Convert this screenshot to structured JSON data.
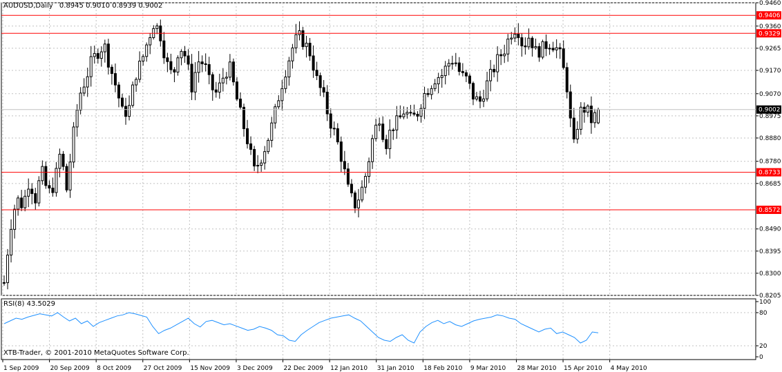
{
  "window": {
    "symbol_title": "AUDUSD,Daily",
    "ohlc_readout": "0.8945 0.9010 0.8939 0.9002",
    "indicator_label": "RSI(8) 43.5029",
    "copyright": "XTB-Trader, © 2001-2010 MetaQuotes Software Corp."
  },
  "chart_data": [
    {
      "type": "candlestick",
      "title": "AUDUSD,Daily",
      "ylim": [
        0.8205,
        0.946
      ],
      "y_ticks": [
        0.946,
        0.936,
        0.9265,
        0.917,
        0.907,
        0.8975,
        0.888,
        0.878,
        0.8685,
        0.849,
        0.8395,
        0.83,
        0.8205
      ],
      "x_ticks": [
        "1 Sep 2009",
        "20 Sep 2009",
        "8 Oct 2009",
        "27 Oct 2009",
        "15 Nov 2009",
        "3 Dec 2009",
        "22 Dec 2009",
        "12 Jan 2010",
        "31 Jan 2010",
        "18 Feb 2010",
        "9 Mar 2010",
        "28 Mar 2010",
        "15 Apr 2010",
        "4 May 2010"
      ],
      "horizontal_levels": [
        0.9406,
        0.9329,
        0.8733,
        0.8572
      ],
      "current_price": 0.9002,
      "grid": true,
      "colors": {
        "candle": "#000000",
        "level_line": "#ff0000",
        "level_label_bg": "#ff0000",
        "current_label_bg": "#000000",
        "grid": "#c0c0c0"
      },
      "close_path": [
        0.826,
        0.85,
        0.862,
        0.859,
        0.87,
        0.862,
        0.874,
        0.864,
        0.868,
        0.882,
        0.866,
        0.888,
        0.906,
        0.913,
        0.921,
        0.925,
        0.928,
        0.918,
        0.909,
        0.898,
        0.901,
        0.915,
        0.921,
        0.93,
        0.938,
        0.932,
        0.92,
        0.914,
        0.928,
        0.923,
        0.91,
        0.921,
        0.92,
        0.91,
        0.907,
        0.914,
        0.919,
        0.907,
        0.896,
        0.886,
        0.874,
        0.879,
        0.886,
        0.895,
        0.907,
        0.917,
        0.926,
        0.932,
        0.929,
        0.924,
        0.913,
        0.906,
        0.896,
        0.889,
        0.879,
        0.866,
        0.859,
        0.864,
        0.874,
        0.889,
        0.897,
        0.885,
        0.893,
        0.895,
        0.9,
        0.896,
        0.898,
        0.906,
        0.91,
        0.914,
        0.915,
        0.92,
        0.922,
        0.915,
        0.913,
        0.906,
        0.903,
        0.91,
        0.916,
        0.922,
        0.926,
        0.933,
        0.936,
        0.927,
        0.932,
        0.925,
        0.926,
        0.929,
        0.928,
        0.923,
        0.91,
        0.883,
        0.899,
        0.901,
        0.895,
        0.9002
      ]
    },
    {
      "type": "line",
      "title": "RSI(8) 43.5029",
      "ylim": [
        0,
        100
      ],
      "y_ticks": [
        100,
        80,
        20,
        0
      ],
      "line_color": "#1e90ff",
      "current_value": 43.5029,
      "path": [
        60,
        65,
        70,
        68,
        72,
        75,
        78,
        76,
        74,
        80,
        72,
        65,
        70,
        60,
        65,
        55,
        62,
        66,
        70,
        74,
        76,
        80,
        78,
        75,
        72,
        55,
        42,
        48,
        52,
        58,
        64,
        70,
        60,
        54,
        64,
        66,
        62,
        58,
        60,
        56,
        52,
        48,
        50,
        55,
        52,
        48,
        40,
        38,
        30,
        28,
        40,
        48,
        55,
        62,
        66,
        70,
        72,
        74,
        76,
        70,
        65,
        55,
        45,
        35,
        30,
        28,
        35,
        40,
        30,
        25,
        45,
        55,
        62,
        66,
        60,
        64,
        58,
        55,
        60,
        65,
        68,
        70,
        72,
        76,
        74,
        70,
        68,
        60,
        55,
        50,
        45,
        50,
        52,
        42,
        45,
        40,
        35,
        25,
        30,
        45,
        43.5
      ]
    }
  ]
}
